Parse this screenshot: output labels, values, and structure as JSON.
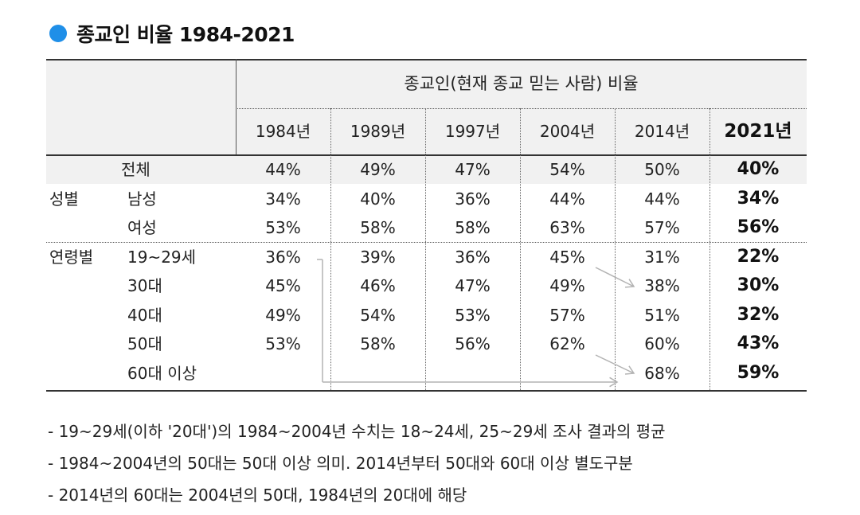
{
  "title": "종교인 비율 1984-2021",
  "colors": {
    "bullet": "#1f8fe8",
    "header_bg": "#f1f1f1",
    "arrow": "#b3b3b3"
  },
  "table": {
    "group_header": "종교인(현재 종교 믿는 사람) 비율",
    "years": [
      "1984년",
      "1989년",
      "1997년",
      "2004년",
      "2014년",
      "2021년"
    ],
    "rows": [
      {
        "group": "",
        "label": "전체",
        "values": [
          "44%",
          "49%",
          "47%",
          "54%",
          "50%",
          "40%"
        ]
      },
      {
        "group": "성별",
        "label": "남성",
        "values": [
          "34%",
          "40%",
          "36%",
          "44%",
          "44%",
          "34%"
        ]
      },
      {
        "group": "",
        "label": "여성",
        "values": [
          "53%",
          "58%",
          "58%",
          "63%",
          "57%",
          "56%"
        ]
      },
      {
        "group": "연령별",
        "label": "19~29세",
        "values": [
          "36%",
          "39%",
          "36%",
          "45%",
          "31%",
          "22%"
        ]
      },
      {
        "group": "",
        "label": "30대",
        "values": [
          "45%",
          "46%",
          "47%",
          "49%",
          "38%",
          "30%"
        ]
      },
      {
        "group": "",
        "label": "40대",
        "values": [
          "49%",
          "54%",
          "53%",
          "57%",
          "51%",
          "32%"
        ]
      },
      {
        "group": "",
        "label": "50대",
        "values": [
          "53%",
          "58%",
          "56%",
          "62%",
          "60%",
          "43%"
        ]
      },
      {
        "group": "",
        "label": "60대 이상",
        "values": [
          "",
          "",
          "",
          "",
          "68%",
          "59%"
        ]
      }
    ]
  },
  "notes": [
    "- 19~29세(이하 '20대')의 1984~2004년 수치는 18~24세, 25~29세 조사 결과의 평균",
    "- 1984~2004년의 50대는 50대 이상 의미. 2014년부터 50대와 60대 이상 별도구분",
    "- 2014년의 60대는 2004년의 50대, 1984년의 20대에 해당"
  ],
  "chart_data": {
    "type": "table",
    "title": "종교인 비율 1984-2021",
    "column_group": "종교인(현재 종교 믿는 사람) 비율",
    "columns": [
      "1984년",
      "1989년",
      "1997년",
      "2004년",
      "2014년",
      "2021년"
    ],
    "rows": [
      {
        "group": "",
        "label": "전체",
        "values": [
          44,
          49,
          47,
          54,
          50,
          40
        ]
      },
      {
        "group": "성별",
        "label": "남성",
        "values": [
          34,
          40,
          36,
          44,
          44,
          34
        ]
      },
      {
        "group": "성별",
        "label": "여성",
        "values": [
          53,
          58,
          58,
          63,
          57,
          56
        ]
      },
      {
        "group": "연령별",
        "label": "19~29세",
        "values": [
          36,
          39,
          36,
          45,
          31,
          22
        ]
      },
      {
        "group": "연령별",
        "label": "30대",
        "values": [
          45,
          46,
          47,
          49,
          38,
          30
        ]
      },
      {
        "group": "연령별",
        "label": "40대",
        "values": [
          49,
          54,
          53,
          57,
          51,
          32
        ]
      },
      {
        "group": "연령별",
        "label": "50대",
        "values": [
          53,
          58,
          56,
          62,
          60,
          43
        ]
      },
      {
        "group": "연령별",
        "label": "60대 이상",
        "values": [
          null,
          null,
          null,
          null,
          68,
          59
        ]
      }
    ]
  }
}
